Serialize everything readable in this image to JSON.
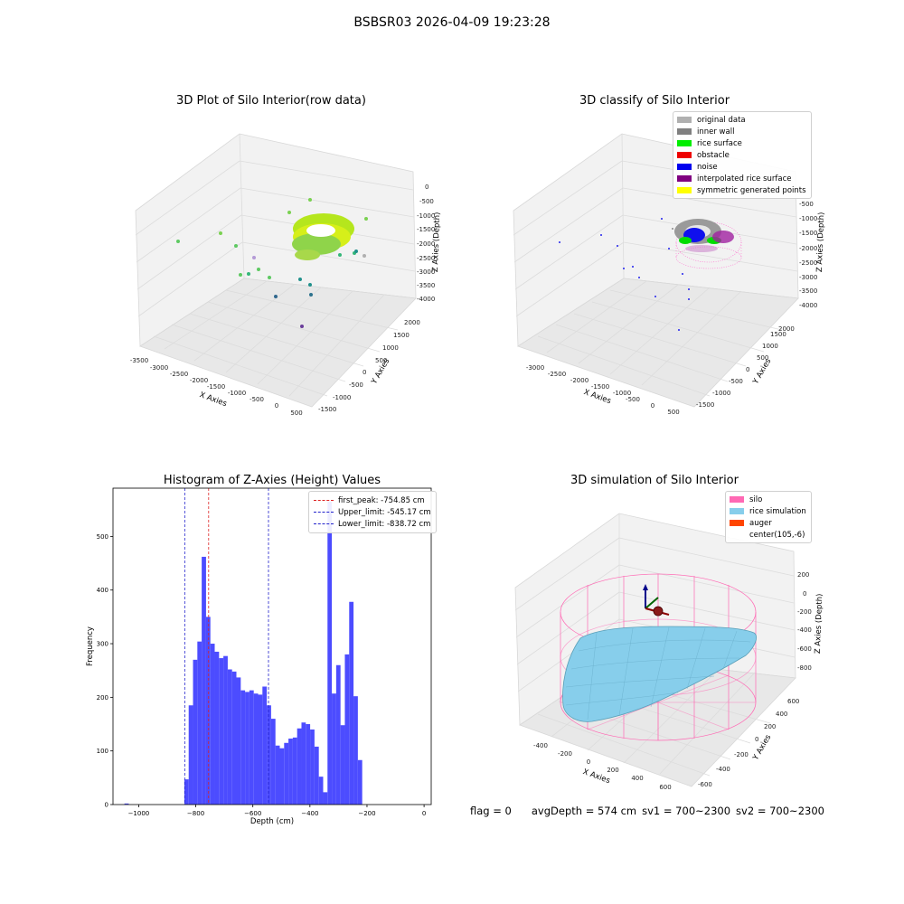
{
  "suptitle": "BSBSR03 2026-04-09 19:23:28",
  "panels": {
    "raw": {
      "title": "3D Plot of Silo Interior(row data)",
      "xlabel": "X Axies",
      "ylabel": "Y Axies",
      "zlabel": "Z Axies (Depth)",
      "xticks": [
        "-3500",
        "-3000",
        "-2500",
        "-2000",
        "-1500",
        "-1000",
        "-500",
        "0",
        "500"
      ],
      "yticks": [
        "-1500",
        "-1000",
        "-500",
        "0",
        "500",
        "1000",
        "1500",
        "2000"
      ],
      "zticks": [
        "0",
        "-500",
        "-1000",
        "-1500",
        "-2000",
        "-2500",
        "-3000",
        "-3500",
        "-4000"
      ]
    },
    "classify": {
      "title": "3D classify of Silo Interior",
      "xlabel": "X Axies",
      "ylabel": "Y Axies",
      "zlabel": "Z Axies (Depth)",
      "xticks": [
        "-3000",
        "-2500",
        "-2000",
        "-1500",
        "-1000",
        "-500",
        "0",
        "500"
      ],
      "yticks": [
        "-1500",
        "-1000",
        "-500",
        "0",
        "500",
        "1000",
        "1500",
        "2000"
      ],
      "zticks": [
        "-500",
        "-1000",
        "-1500",
        "-2000",
        "-2500",
        "-3000",
        "-3500",
        "-4000"
      ],
      "legend": [
        {
          "label": "original data",
          "color": "#b0b0b0"
        },
        {
          "label": "inner wall",
          "color": "#808080"
        },
        {
          "label": "rice surface",
          "color": "#00ee00"
        },
        {
          "label": "obstacle",
          "color": "#ee0000"
        },
        {
          "label": "noise",
          "color": "#0000ee"
        },
        {
          "label": "interpolated rice surface",
          "color": "#800080"
        },
        {
          "label": "symmetric generated points",
          "color": "#ffff00"
        }
      ]
    },
    "sim": {
      "title": "3D simulation of Silo Interior",
      "xlabel": "X Axies",
      "ylabel": "Y Axies",
      "zlabel": "Z Axies (Depth)",
      "xticks": [
        "-400",
        "-200",
        "0",
        "200",
        "400",
        "600"
      ],
      "yticks": [
        "-600",
        "-400",
        "-200",
        "0",
        "200",
        "400",
        "600"
      ],
      "zticks": [
        "200",
        "0",
        "-200",
        "-400",
        "-600",
        "-800"
      ],
      "legend": [
        {
          "label": "silo",
          "color": "#ff69b4"
        },
        {
          "label": "rice simulation",
          "color": "#87ceeb"
        },
        {
          "label": "auger",
          "color": "#ff4500"
        },
        {
          "label": "center(105,-6)",
          "color": "#ffffff"
        }
      ]
    }
  },
  "footer": {
    "flag": "flag = 0",
    "avg": "avgDepth = 574 cm",
    "sv1": "sv1 = 700~2300",
    "sv2": "sv2 = 700~2300"
  },
  "chart_data": {
    "type": "bar",
    "title": "Histogram of Z-Axies (Height) Values",
    "xlabel": "Depth (cm)",
    "ylabel": "Frequency",
    "xlim": [
      -1090,
      25
    ],
    "ylim": [
      0,
      590
    ],
    "xticks": [
      -1000,
      -800,
      -600,
      -400,
      -200,
      0
    ],
    "yticks": [
      0,
      100,
      200,
      300,
      400,
      500
    ],
    "bin_start": -840,
    "bin_width": 15.2,
    "bar_color": "#4c4cff",
    "outlier_bin": {
      "x": -1050,
      "value": 2
    },
    "values": [
      47,
      185,
      270,
      304,
      462,
      350,
      300,
      285,
      273,
      277,
      252,
      248,
      237,
      213,
      210,
      213,
      207,
      205,
      220,
      185,
      160,
      110,
      105,
      115,
      123,
      125,
      142,
      153,
      150,
      140,
      108,
      52,
      23,
      565,
      207,
      260,
      148,
      280,
      378,
      202,
      83
    ],
    "vlines": [
      {
        "label": "first_peak: -754.85 cm",
        "x": -754.85,
        "color": "#dd2222"
      },
      {
        "label": "Upper_limit: -545.17 cm",
        "x": -545.17,
        "color": "#2222cc"
      },
      {
        "label": "Lower_limit: -838.72 cm",
        "x": -838.72,
        "color": "#2222cc"
      }
    ]
  }
}
